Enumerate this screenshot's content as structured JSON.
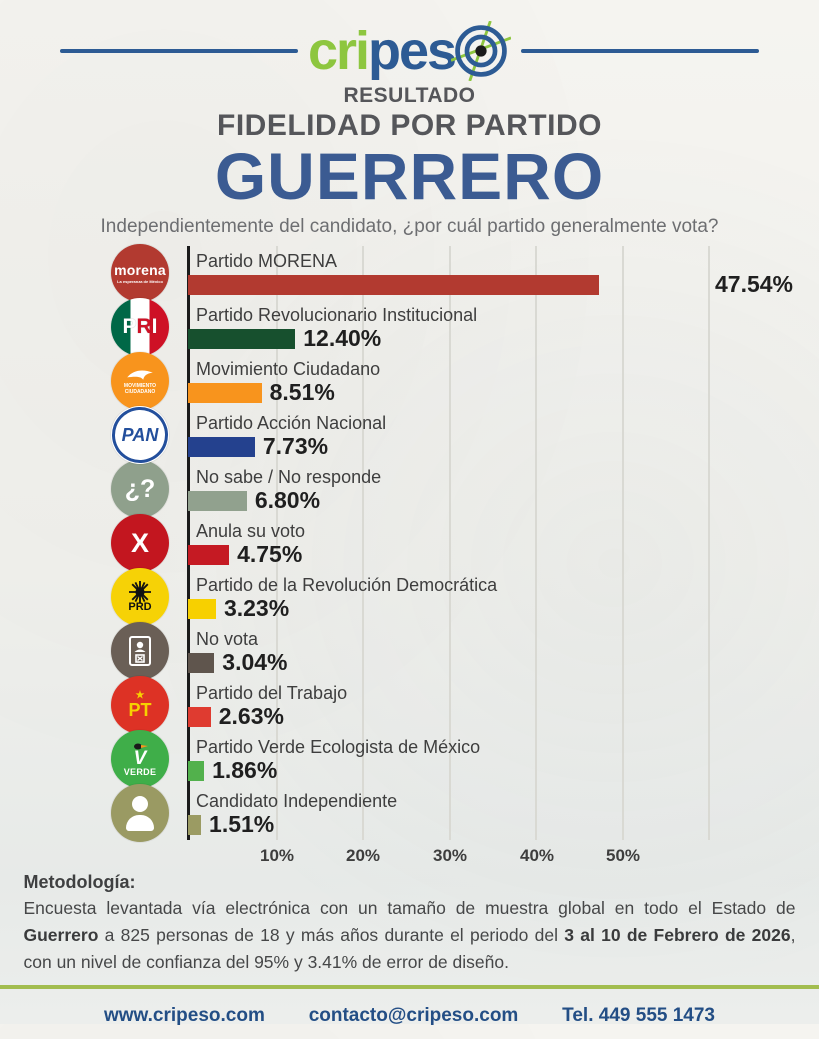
{
  "brand": {
    "name_part1": "cri",
    "name_part2": "pes",
    "target_icon": "target-crosshair-icon"
  },
  "header": {
    "kicker": "RESULTADO",
    "title": "FIDELIDAD POR PARTIDO",
    "state": "GUERRERO",
    "question": "Independientemente del candidato, ¿por cuál partido generalmente vota?"
  },
  "chart_data": {
    "type": "bar",
    "orientation": "horizontal",
    "title": "Fidelidad por partido — Guerrero",
    "xlim": [
      0,
      60
    ],
    "grid": true,
    "x_tick_values": [
      10,
      20,
      30,
      40,
      50
    ],
    "x_tick_labels": [
      "10%",
      "20%",
      "30%",
      "40%",
      "50%"
    ],
    "categories": [
      "Partido MORENA",
      "Partido Revolucionario Institucional",
      "Movimiento Ciudadano",
      "Partido Acción Nacional",
      "No sabe / No responde",
      "Anula su voto",
      "Partido de la Revolución Democrática",
      "No vota",
      "Partido del Trabajo",
      "Partido Verde Ecologista de México",
      "Candidato Independiente"
    ],
    "values": [
      47.54,
      12.4,
      8.51,
      7.73,
      6.8,
      4.75,
      3.23,
      3.04,
      2.63,
      1.86,
      1.51
    ],
    "rows": [
      {
        "label": "Partido MORENA",
        "value": 47.54,
        "value_label": "47.54%",
        "color": "#b23a30",
        "logo": {
          "name": "morena",
          "text": "morena",
          "tagline": "La esperanza de México"
        }
      },
      {
        "label": "Partido Revolucionario Institucional",
        "value": 12.4,
        "value_label": "12.40%",
        "color": "#17502e",
        "logo": {
          "name": "pri",
          "l1": "P",
          "l2": "R",
          "l3": "I"
        }
      },
      {
        "label": "Movimiento Ciudadano",
        "value": 8.51,
        "value_label": "8.51%",
        "color": "#f8941d",
        "logo": {
          "name": "movimiento-ciudadano",
          "line1": "MOVIMIENTO",
          "line2": "CIUDADANO"
        }
      },
      {
        "label": "Partido Acción Nacional",
        "value": 7.73,
        "value_label": "7.73%",
        "color": "#24418e",
        "logo": {
          "name": "pan",
          "text": "PAN"
        }
      },
      {
        "label": "No sabe / No responde",
        "value": 6.8,
        "value_label": "6.80%",
        "color": "#91a18e",
        "logo": {
          "name": "no-sabe",
          "text": "¿?"
        }
      },
      {
        "label": "Anula su voto",
        "value": 4.75,
        "value_label": "4.75%",
        "color": "#c51a23",
        "logo": {
          "name": "anula-voto",
          "text": "X"
        }
      },
      {
        "label": "Partido de la Revolución Democrática",
        "value": 3.23,
        "value_label": "3.23%",
        "color": "#f7d000",
        "logo": {
          "name": "prd",
          "text": "PRD"
        }
      },
      {
        "label": "No vota",
        "value": 3.04,
        "value_label": "3.04%",
        "color": "#5f554d",
        "logo": {
          "name": "no-vota"
        }
      },
      {
        "label": "Partido del Trabajo",
        "value": 2.63,
        "value_label": "2.63%",
        "color": "#df3b30",
        "logo": {
          "name": "pt",
          "star": "★",
          "text": "PT"
        }
      },
      {
        "label": "Partido Verde Ecologista de México",
        "value": 1.86,
        "value_label": "1.86%",
        "color": "#52b14c",
        "logo": {
          "name": "verde",
          "vee": "V",
          "text": "VERDE"
        }
      },
      {
        "label": "Candidato Independiente",
        "value": 1.51,
        "value_label": "1.51%",
        "color": "#9b9b63",
        "logo": {
          "name": "independiente"
        }
      }
    ]
  },
  "methodology": {
    "title": "Metodología:",
    "p1": "Encuesta levantada vía electrónica con un tamaño de muestra global en todo el Estado de ",
    "b1": "Guerrero",
    "p2": " a 825 personas de 18 y más años durante el periodo del ",
    "b2": "3 al 10 de Febrero de 2026",
    "p3": ", con un nivel de confianza del 95% y 3.41% de error de diseño."
  },
  "footer": {
    "website": "www.cripeso.com",
    "email": "contacto@cripeso.com",
    "phone": "Tel. 449 555 1473"
  },
  "colors": {
    "brand_green": "#8dc63f",
    "brand_blue": "#2d5b94",
    "state_blue": "#3b5b92",
    "divider_green": "#a2bd4f",
    "axis_black": "#1b1b1b",
    "gridline": "#d9d9d3"
  }
}
